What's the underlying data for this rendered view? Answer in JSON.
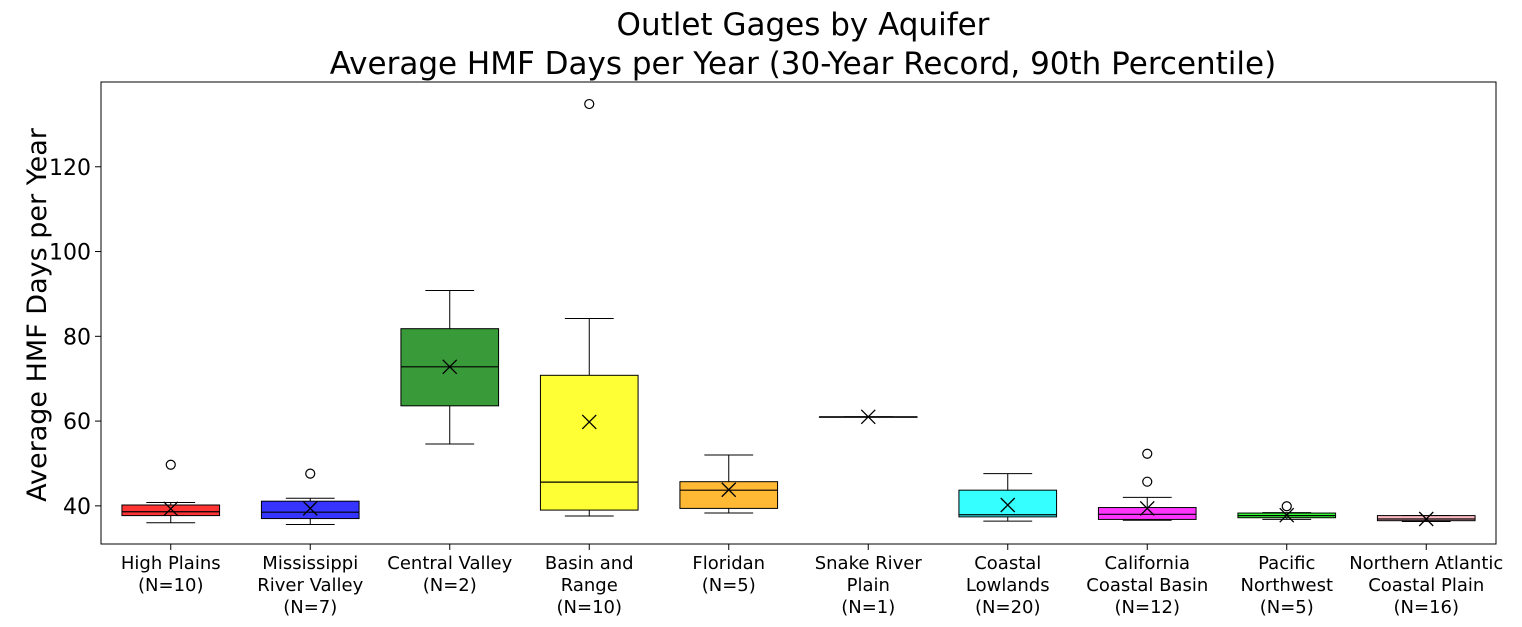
{
  "chart_data": {
    "type": "box",
    "title_line1": "Outlet Gages by Aquifer",
    "title_line2": "Average HMF Days per Year (30-Year Record, 90th Percentile)",
    "xlabel": "",
    "ylabel": "Average HMF Days per Year",
    "ylim": [
      31,
      140
    ],
    "yticks": [
      40,
      60,
      80,
      100,
      120
    ],
    "grid": false,
    "boxes": [
      {
        "line1": "High Plains",
        "line2": "(N=10)",
        "color": "#ff2a2a",
        "whislo": 36.0,
        "q1": 37.7,
        "med": 38.6,
        "q3": 40.2,
        "whishi": 40.8,
        "mean": 39.3,
        "fliers": [
          49.7
        ]
      },
      {
        "line1": "Mississippi",
        "line2": "River Valley",
        "line3": "(N=7)",
        "color": "#2a2aff",
        "whislo": 35.6,
        "q1": 37.0,
        "med": 38.5,
        "q3": 41.1,
        "whishi": 41.8,
        "mean": 39.4,
        "fliers": [
          47.6
        ]
      },
      {
        "line1": "Central Valley",
        "line2": "(N=2)",
        "color": "#2e952e",
        "whislo": 54.6,
        "q1": 63.6,
        "med": 72.8,
        "q3": 81.8,
        "whishi": 90.8,
        "mean": 72.8,
        "fliers": []
      },
      {
        "line1": "Basin and",
        "line2": "Range",
        "line3": "(N=10)",
        "color": "#ffff2a",
        "whislo": 37.6,
        "q1": 39.0,
        "med": 45.6,
        "q3": 70.8,
        "whishi": 84.2,
        "mean": 59.8,
        "fliers": [
          134.8
        ]
      },
      {
        "line1": "Floridan",
        "line2": "(N=5)",
        "color": "#ffb52a",
        "whislo": 38.3,
        "q1": 39.4,
        "med": 43.7,
        "q3": 45.7,
        "whishi": 52.0,
        "mean": 43.8,
        "fliers": []
      },
      {
        "line1": "Snake River",
        "line2": "Plain",
        "line3": "(N=1)",
        "color": "#7f7f7f",
        "whislo": 61.0,
        "q1": 61.0,
        "med": 61.0,
        "q3": 61.0,
        "whishi": 61.0,
        "mean": 61.0,
        "fliers": []
      },
      {
        "line1": "Coastal",
        "line2": "Lowlands",
        "line3": "(N=20)",
        "color": "#2affff",
        "whislo": 36.4,
        "q1": 37.4,
        "med": 37.9,
        "q3": 43.7,
        "whishi": 47.6,
        "mean": 40.2,
        "fliers": []
      },
      {
        "line1": "California",
        "line2": "Coastal Basin",
        "line3": "(N=12)",
        "color": "#ff2aff",
        "whislo": 36.6,
        "q1": 36.8,
        "med": 38.0,
        "q3": 39.6,
        "whishi": 42.0,
        "mean": 39.4,
        "fliers": [
          45.7,
          52.3
        ]
      },
      {
        "line1": "Pacific",
        "line2": "Northwest",
        "line3": "(N=5)",
        "color": "#2aff2a",
        "whislo": 36.8,
        "q1": 37.2,
        "med": 37.7,
        "q3": 38.3,
        "whishi": 38.4,
        "mean": 37.8,
        "fliers": [
          39.9
        ]
      },
      {
        "line1": "Northern Atlantic",
        "line2": "Coastal Plain",
        "line3": "(N=16)",
        "color": "#ffb6c1",
        "whislo": 36.3,
        "q1": 36.5,
        "med": 36.9,
        "q3": 37.7,
        "whishi": 37.7,
        "mean": 36.9,
        "fliers": []
      }
    ]
  }
}
